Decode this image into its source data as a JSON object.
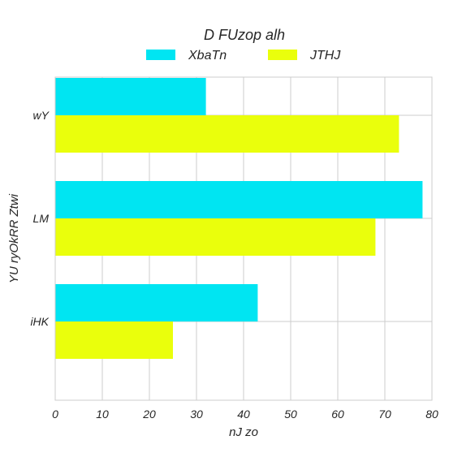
{
  "chart_data": {
    "type": "bar",
    "orientation": "horizontal",
    "categories": [
      "wY",
      "LM",
      "iHK"
    ],
    "series": [
      {
        "name": "XbaTn",
        "values": [
          32,
          78,
          43
        ],
        "color": "#00e5f2"
      },
      {
        "name": "JTHJ",
        "values": [
          73,
          68,
          25
        ],
        "color": "#eaff0c"
      }
    ],
    "legend_title": "D FUzop alh",
    "xlabel": "nJ  zo",
    "ylabel": "YU ryOkRR Ztwi",
    "xlim": [
      0,
      80
    ],
    "xticks": [
      0,
      10,
      20,
      30,
      40,
      50,
      60,
      70,
      80
    ],
    "grid": true,
    "legend_position": "top-center"
  }
}
